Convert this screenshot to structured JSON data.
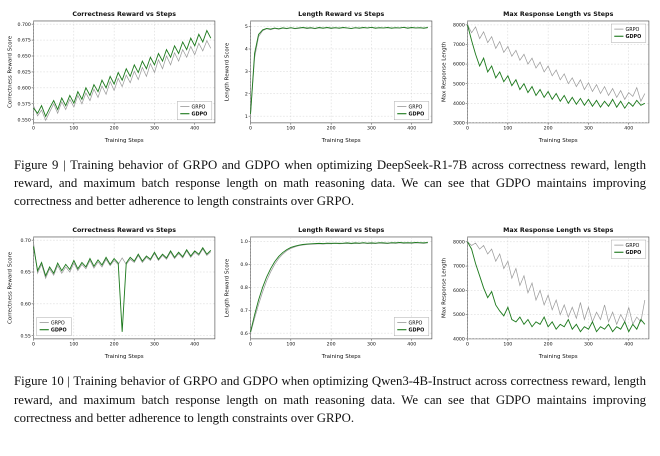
{
  "figures": [
    {
      "caption": "Figure 9  |  Training behavior of GRPO and GDPO when optimizing DeepSeek-R1-7B across correctness reward, length reward, and maximum batch response length on math reasoning data. We can see that GDPO maintains improving correctness and better adherence to length constraints over GRPO."
    },
    {
      "caption": "Figure 10  |  Training behavior of GRPO and GDPO when optimizing Qwen3-4B-Instruct across correctness reward, length reward, and maximum batch response length on math reasoning data. We can see that GDPO maintains improving correctness and better adherence to length constraints over GRPO."
    }
  ],
  "colors": {
    "grpo": "#9a9a9a",
    "gdpo": "#1e7a1e",
    "grid": "#c9c9c9",
    "axis": "#444444",
    "text": "#111111"
  },
  "chart_data": [
    {
      "figure": 9,
      "type": "line",
      "title": "Correctness Reward vs Steps",
      "xlabel": "Training Steps",
      "ylabel": "Correctness Reward Score",
      "xlim": [
        0,
        450
      ],
      "ylim": [
        0.545,
        0.705
      ],
      "xticks": [
        0,
        100,
        200,
        300,
        400
      ],
      "yticks": [
        "0.550",
        "0.575",
        "0.600",
        "0.625",
        "0.650",
        "0.675",
        "0.700"
      ],
      "legend_pos": "lower-right",
      "grid": true,
      "x": [
        0,
        10,
        20,
        30,
        40,
        50,
        60,
        70,
        80,
        90,
        100,
        110,
        120,
        130,
        140,
        150,
        160,
        170,
        180,
        190,
        200,
        210,
        220,
        230,
        240,
        250,
        260,
        270,
        280,
        290,
        300,
        310,
        320,
        330,
        340,
        350,
        360,
        370,
        380,
        390,
        400,
        410,
        420,
        430,
        440
      ],
      "series": [
        {
          "name": "GRPO",
          "color": "grpo",
          "bold": false,
          "values": [
            0.572,
            0.556,
            0.565,
            0.549,
            0.562,
            0.575,
            0.56,
            0.578,
            0.566,
            0.582,
            0.57,
            0.588,
            0.575,
            0.592,
            0.58,
            0.598,
            0.585,
            0.603,
            0.59,
            0.61,
            0.596,
            0.615,
            0.602,
            0.62,
            0.608,
            0.626,
            0.613,
            0.632,
            0.618,
            0.638,
            0.624,
            0.644,
            0.63,
            0.65,
            0.636,
            0.655,
            0.642,
            0.66,
            0.648,
            0.665,
            0.652,
            0.67,
            0.658,
            0.674,
            0.662
          ]
        },
        {
          "name": "GDPO",
          "color": "gdpo",
          "bold": true,
          "values": [
            0.568,
            0.56,
            0.572,
            0.555,
            0.568,
            0.58,
            0.566,
            0.584,
            0.572,
            0.588,
            0.576,
            0.594,
            0.582,
            0.6,
            0.588,
            0.605,
            0.594,
            0.612,
            0.6,
            0.618,
            0.606,
            0.624,
            0.612,
            0.63,
            0.618,
            0.636,
            0.624,
            0.642,
            0.63,
            0.648,
            0.636,
            0.654,
            0.642,
            0.66,
            0.648,
            0.666,
            0.654,
            0.672,
            0.66,
            0.678,
            0.666,
            0.684,
            0.672,
            0.69,
            0.678
          ]
        }
      ]
    },
    {
      "figure": 9,
      "type": "line",
      "title": "Length Reward vs Steps",
      "xlabel": "Training Steps",
      "ylabel": "Length Reward Score",
      "xlim": [
        0,
        450
      ],
      "ylim": [
        0.7,
        5.25
      ],
      "xticks": [
        0,
        100,
        200,
        300,
        400
      ],
      "yticks": [
        "1",
        "2",
        "3",
        "4",
        "5"
      ],
      "legend_pos": "lower-right",
      "grid": true,
      "x": [
        0,
        10,
        20,
        30,
        40,
        50,
        60,
        70,
        80,
        90,
        100,
        110,
        120,
        130,
        140,
        150,
        160,
        170,
        180,
        190,
        200,
        210,
        220,
        230,
        240,
        250,
        260,
        270,
        280,
        290,
        300,
        310,
        320,
        330,
        340,
        350,
        360,
        370,
        380,
        390,
        400,
        410,
        420,
        430,
        440
      ],
      "series": [
        {
          "name": "GRPO",
          "color": "grpo",
          "bold": false,
          "values": [
            1.05,
            3.6,
            4.55,
            4.82,
            4.9,
            4.86,
            4.92,
            4.88,
            4.93,
            4.9,
            4.94,
            4.9,
            4.92,
            4.95,
            4.91,
            4.93,
            4.9,
            4.94,
            4.92,
            4.95,
            4.91,
            4.94,
            4.92,
            4.95,
            4.93,
            4.91,
            4.94,
            4.92,
            4.95,
            4.93,
            4.96,
            4.92,
            4.94,
            4.93,
            4.95,
            4.92,
            4.94,
            4.93,
            4.96,
            4.92,
            4.95,
            4.93,
            4.94,
            4.92,
            4.95
          ]
        },
        {
          "name": "GDPO",
          "color": "gdpo",
          "bold": true,
          "values": [
            1.1,
            3.8,
            4.65,
            4.85,
            4.92,
            4.89,
            4.93,
            4.9,
            4.94,
            4.92,
            4.95,
            4.92,
            4.94,
            4.96,
            4.93,
            4.95,
            4.92,
            4.96,
            4.93,
            4.96,
            4.93,
            4.95,
            4.93,
            4.96,
            4.94,
            4.92,
            4.95,
            4.93,
            4.96,
            4.94,
            4.97,
            4.93,
            4.95,
            4.94,
            4.96,
            4.93,
            4.95,
            4.94,
            4.97,
            4.93,
            4.96,
            4.94,
            4.95,
            4.93,
            4.96
          ]
        }
      ]
    },
    {
      "figure": 9,
      "type": "line",
      "title": "Max Response Length vs Steps",
      "xlabel": "Training Steps",
      "ylabel": "Max Response Length",
      "xlim": [
        0,
        450
      ],
      "ylim": [
        3000,
        8200
      ],
      "xticks": [
        0,
        100,
        200,
        300,
        400
      ],
      "yticks": [
        "3000",
        "4000",
        "5000",
        "6000",
        "7000",
        "8000"
      ],
      "legend_pos": "upper-right",
      "grid": true,
      "x": [
        0,
        10,
        20,
        30,
        40,
        50,
        60,
        70,
        80,
        90,
        100,
        110,
        120,
        130,
        140,
        150,
        160,
        170,
        180,
        190,
        200,
        210,
        220,
        230,
        240,
        250,
        260,
        270,
        280,
        290,
        300,
        310,
        320,
        330,
        340,
        350,
        360,
        370,
        380,
        390,
        400,
        410,
        420,
        430,
        440
      ],
      "series": [
        {
          "name": "GRPO",
          "color": "grpo",
          "bold": false,
          "values": [
            8000,
            7600,
            7900,
            7300,
            7650,
            7100,
            7400,
            6800,
            7150,
            6600,
            6900,
            6400,
            6700,
            6200,
            6500,
            6000,
            6300,
            5800,
            6100,
            5600,
            5900,
            5400,
            5700,
            5200,
            5500,
            5000,
            5300,
            4850,
            5200,
            4700,
            5050,
            4600,
            4950,
            4500,
            4850,
            4400,
            4750,
            4300,
            4650,
            4200,
            4550,
            4350,
            4800,
            4100,
            4500
          ]
        },
        {
          "name": "GDPO",
          "color": "gdpo",
          "bold": true,
          "values": [
            8000,
            7200,
            6500,
            5900,
            6300,
            5600,
            5900,
            5300,
            5600,
            5100,
            5400,
            4900,
            5200,
            4700,
            5000,
            4550,
            4850,
            4400,
            4700,
            4300,
            4600,
            4200,
            4500,
            4100,
            4400,
            4000,
            4300,
            3950,
            4250,
            3900,
            4200,
            3850,
            4150,
            3800,
            4100,
            3850,
            4200,
            3800,
            4100,
            3750,
            4050,
            3850,
            4150,
            3900,
            4000
          ]
        }
      ]
    },
    {
      "figure": 10,
      "type": "line",
      "title": "Correctness Reward vs Steps",
      "xlabel": "Training Steps",
      "ylabel": "Correctness Reward Score",
      "xlim": [
        0,
        450
      ],
      "ylim": [
        0.545,
        0.705
      ],
      "xticks": [
        0,
        100,
        200,
        300,
        400
      ],
      "yticks": [
        "0.55",
        "0.60",
        "0.65",
        "0.70"
      ],
      "legend_pos": "lower-left",
      "grid": true,
      "x": [
        0,
        10,
        20,
        30,
        40,
        50,
        60,
        70,
        80,
        90,
        100,
        110,
        120,
        130,
        140,
        150,
        160,
        170,
        180,
        190,
        200,
        210,
        220,
        230,
        240,
        250,
        260,
        270,
        280,
        290,
        300,
        310,
        320,
        330,
        340,
        350,
        360,
        370,
        380,
        390,
        400,
        410,
        420,
        430,
        440
      ],
      "series": [
        {
          "name": "GRPO",
          "color": "grpo",
          "bold": false,
          "values": [
            0.696,
            0.648,
            0.662,
            0.64,
            0.655,
            0.645,
            0.66,
            0.648,
            0.658,
            0.65,
            0.664,
            0.652,
            0.662,
            0.655,
            0.668,
            0.656,
            0.666,
            0.658,
            0.67,
            0.66,
            0.668,
            0.662,
            0.672,
            0.662,
            0.67,
            0.665,
            0.676,
            0.665,
            0.673,
            0.668,
            0.679,
            0.668,
            0.676,
            0.67,
            0.681,
            0.671,
            0.679,
            0.672,
            0.683,
            0.673,
            0.681,
            0.676,
            0.686,
            0.676,
            0.682
          ]
        },
        {
          "name": "GDPO",
          "color": "gdpo",
          "bold": true,
          "values": [
            0.69,
            0.652,
            0.665,
            0.644,
            0.658,
            0.648,
            0.664,
            0.652,
            0.662,
            0.654,
            0.668,
            0.655,
            0.665,
            0.658,
            0.671,
            0.659,
            0.669,
            0.661,
            0.673,
            0.662,
            0.671,
            0.664,
            0.556,
            0.664,
            0.673,
            0.667,
            0.678,
            0.667,
            0.675,
            0.67,
            0.681,
            0.67,
            0.678,
            0.672,
            0.683,
            0.673,
            0.681,
            0.674,
            0.685,
            0.675,
            0.683,
            0.678,
            0.688,
            0.678,
            0.684
          ]
        }
      ]
    },
    {
      "figure": 10,
      "type": "line",
      "title": "Length Reward vs Steps",
      "xlabel": "Training Steps",
      "ylabel": "Length Reward Score",
      "xlim": [
        0,
        450
      ],
      "ylim": [
        0.575,
        1.02
      ],
      "xticks": [
        0,
        100,
        200,
        300,
        400
      ],
      "yticks": [
        "0.6",
        "0.7",
        "0.8",
        "0.9",
        "1.0"
      ],
      "legend_pos": "lower-right",
      "grid": true,
      "x": [
        0,
        10,
        20,
        30,
        40,
        50,
        60,
        70,
        80,
        90,
        100,
        110,
        120,
        130,
        140,
        150,
        160,
        170,
        180,
        190,
        200,
        210,
        220,
        230,
        240,
        250,
        260,
        270,
        280,
        290,
        300,
        310,
        320,
        330,
        340,
        350,
        360,
        370,
        380,
        390,
        400,
        410,
        420,
        430,
        440
      ],
      "series": [
        {
          "name": "GRPO",
          "color": "grpo",
          "bold": false,
          "values": [
            0.6,
            0.665,
            0.725,
            0.78,
            0.828,
            0.868,
            0.9,
            0.926,
            0.945,
            0.96,
            0.97,
            0.977,
            0.982,
            0.985,
            0.987,
            0.988,
            0.989,
            0.99,
            0.989,
            0.991,
            0.99,
            0.992,
            0.99,
            0.991,
            0.992,
            0.99,
            0.992,
            0.991,
            0.993,
            0.991,
            0.992,
            0.991,
            0.993,
            0.992,
            0.991,
            0.993,
            0.992,
            0.994,
            0.992,
            0.993,
            0.992,
            0.994,
            0.993,
            0.992,
            0.994
          ]
        },
        {
          "name": "GDPO",
          "color": "gdpo",
          "bold": true,
          "values": [
            0.605,
            0.68,
            0.745,
            0.8,
            0.845,
            0.882,
            0.912,
            0.935,
            0.952,
            0.965,
            0.974,
            0.98,
            0.984,
            0.987,
            0.989,
            0.99,
            0.991,
            0.992,
            0.991,
            0.993,
            0.992,
            0.993,
            0.992,
            0.993,
            0.994,
            0.992,
            0.994,
            0.993,
            0.995,
            0.993,
            0.994,
            0.993,
            0.995,
            0.994,
            0.993,
            0.995,
            0.994,
            0.996,
            0.994,
            0.995,
            0.994,
            0.996,
            0.995,
            0.994,
            0.996
          ]
        }
      ]
    },
    {
      "figure": 10,
      "type": "line",
      "title": "Max Response Length vs Steps",
      "xlabel": "Training Steps",
      "ylabel": "Max Response Length",
      "xlim": [
        0,
        450
      ],
      "ylim": [
        4000,
        8200
      ],
      "xticks": [
        0,
        100,
        200,
        300,
        400
      ],
      "yticks": [
        "4000",
        "5000",
        "6000",
        "7000",
        "8000"
      ],
      "legend_pos": "upper-right",
      "grid": true,
      "x": [
        0,
        10,
        20,
        30,
        40,
        50,
        60,
        70,
        80,
        90,
        100,
        110,
        120,
        130,
        140,
        150,
        160,
        170,
        180,
        190,
        200,
        210,
        220,
        230,
        240,
        250,
        260,
        270,
        280,
        290,
        300,
        310,
        320,
        330,
        340,
        350,
        360,
        370,
        380,
        390,
        400,
        410,
        420,
        430,
        440
      ],
      "series": [
        {
          "name": "GRPO",
          "color": "grpo",
          "bold": false,
          "values": [
            8000,
            7850,
            7950,
            7700,
            7850,
            7500,
            7700,
            7200,
            7500,
            6900,
            7200,
            6500,
            6900,
            6200,
            6600,
            5900,
            6300,
            5600,
            6000,
            5400,
            5800,
            5200,
            5600,
            5000,
            5400,
            4900,
            5300,
            4850,
            5500,
            4800,
            5300,
            4700,
            5100,
            4800,
            5400,
            4700,
            5100,
            4600,
            5000,
            4700,
            5300,
            4600,
            4900,
            4700,
            5600
          ]
        },
        {
          "name": "GDPO",
          "color": "gdpo",
          "bold": true,
          "values": [
            8000,
            7700,
            7100,
            6600,
            6100,
            5700,
            5950,
            5400,
            5150,
            4950,
            5300,
            4800,
            4700,
            4900,
            4600,
            4800,
            4500,
            4700,
            4600,
            4900,
            4500,
            4700,
            4400,
            4600,
            4500,
            4800,
            4400,
            4600,
            4300,
            4500,
            4400,
            4700,
            4300,
            4500,
            4400,
            4600,
            4300,
            4500,
            4400,
            4700,
            4300,
            4600,
            4400,
            4800,
            4600
          ]
        }
      ]
    }
  ]
}
